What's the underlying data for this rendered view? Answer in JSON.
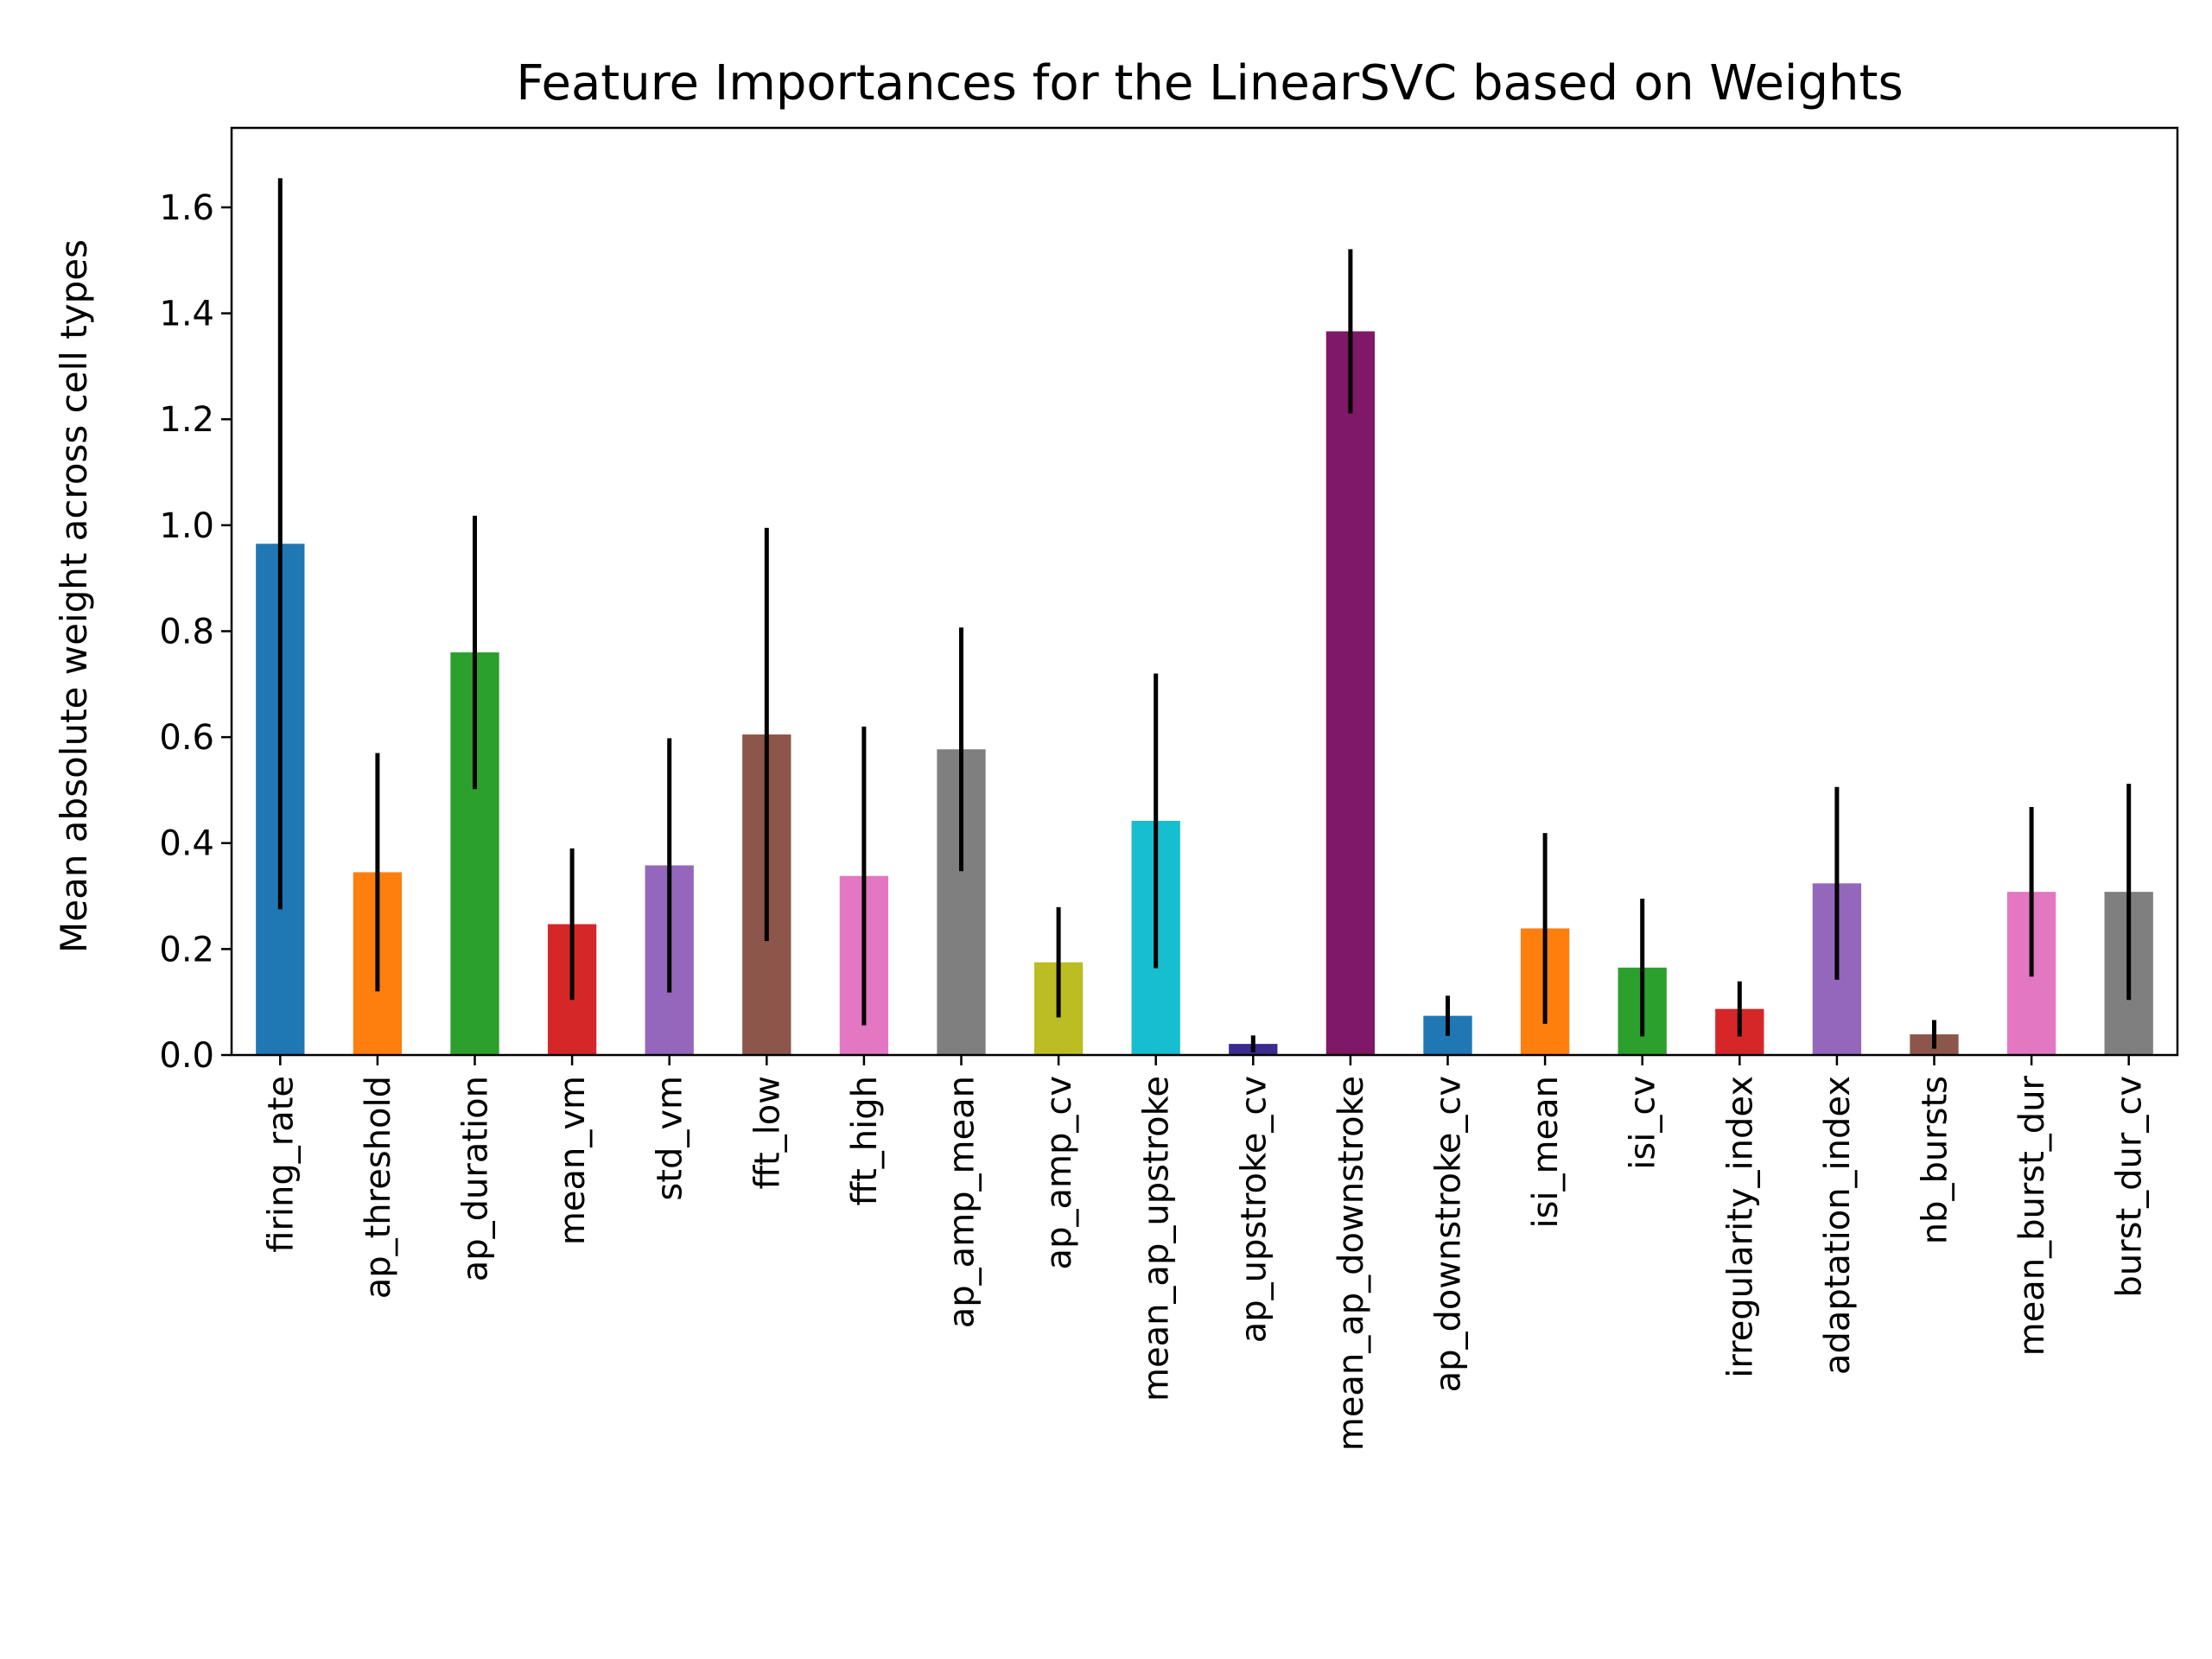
{
  "chart_data": {
    "type": "bar",
    "title": "Feature Importances for the LinearSVC based on Weights",
    "xlabel": "",
    "ylabel": "Mean absolute weight across cell types",
    "ylim": [
      0,
      1.75
    ],
    "yticks": [
      0.0,
      0.2,
      0.4,
      0.6,
      0.8,
      1.0,
      1.2,
      1.4,
      1.6
    ],
    "ytick_labels": [
      "0.0",
      "0.2",
      "0.4",
      "0.6",
      "0.8",
      "1.0",
      "1.2",
      "1.4",
      "1.6"
    ],
    "grid": false,
    "legend": "none",
    "categories": [
      "firing_rate",
      "ap_threshold",
      "ap_duration",
      "mean_vm",
      "std_vm",
      "fft_low",
      "fft_high",
      "ap_amp_mean",
      "ap_amp_cv",
      "mean_ap_upstroke",
      "ap_upstroke_cv",
      "mean_ap_downstroke",
      "ap_downstroke_cv",
      "isi_mean",
      "isi_cv",
      "irregularity_index",
      "adaptation_index",
      "nb_bursts",
      "mean_burst_dur",
      "burst_dur_cv"
    ],
    "values": [
      0.965,
      0.345,
      0.76,
      0.247,
      0.358,
      0.605,
      0.338,
      0.577,
      0.175,
      0.442,
      0.021,
      1.366,
      0.074,
      0.239,
      0.165,
      0.087,
      0.324,
      0.039,
      0.308,
      0.308
    ],
    "errors": [
      0.69,
      0.225,
      0.258,
      0.143,
      0.24,
      0.39,
      0.282,
      0.23,
      0.104,
      0.278,
      0.016,
      0.155,
      0.038,
      0.18,
      0.13,
      0.052,
      0.182,
      0.027,
      0.16,
      0.204
    ],
    "colors": [
      "#1f77b4",
      "#ff7f0e",
      "#2ca02c",
      "#d62728",
      "#9467bd",
      "#8c564b",
      "#e377c2",
      "#7f7f7f",
      "#bcbd22",
      "#17becf",
      "#3b2a8f",
      "#7f1866",
      "#1f77b4",
      "#ff7f0e",
      "#2ca02c",
      "#d62728",
      "#9467bd",
      "#8c564b",
      "#e377c2",
      "#7f7f7f"
    ]
  }
}
